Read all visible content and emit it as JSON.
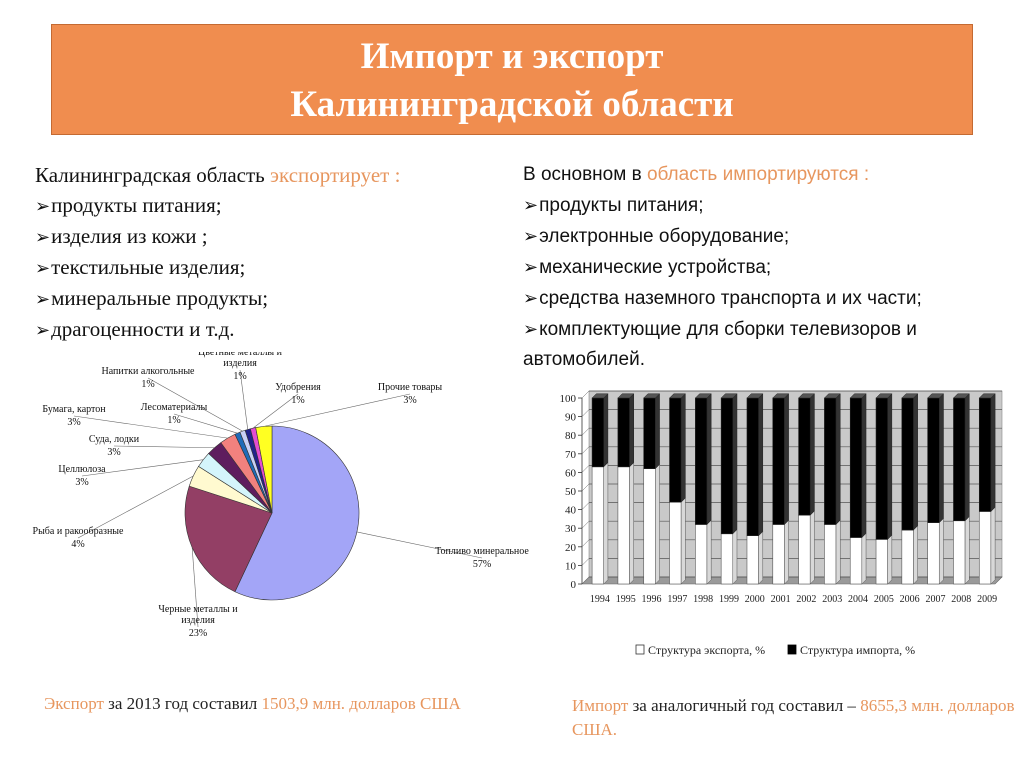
{
  "title": {
    "line1": "Импорт и экспорт",
    "line2": "Калининградской области"
  },
  "export_block": {
    "intro_plain": "Калининградская область ",
    "intro_accent": "экспортирует :",
    "items": [
      "продукты питания;",
      "изделия из кожи ;",
      "текстильные изделия;",
      "минеральные продукты;",
      "драгоценности и т.д."
    ]
  },
  "import_block": {
    "intro_plain": "В основном в ",
    "intro_accent": "область импортируются :",
    "items": [
      "продукты питания;",
      "электронные оборудование;",
      "механические устройства;",
      "средства наземного транспорта и их части;",
      "комплектующие для сборки телевизоров и"
    ],
    "continuation": "автомобилей."
  },
  "chart_data": [
    {
      "type": "pie",
      "title": "",
      "slices": [
        {
          "label": "Топливо минеральное",
          "value": 57,
          "color": "#a3a5f7"
        },
        {
          "label": "Черные металлы и изделия",
          "value": 23,
          "color": "#933f65"
        },
        {
          "label": "Рыба и ракообразные",
          "value": 4,
          "color": "#fffad0"
        },
        {
          "label": "Целлюлоза",
          "value": 3,
          "color": "#d4f5fb"
        },
        {
          "label": "Суда, лодки",
          "value": 3,
          "color": "#5e1d5e"
        },
        {
          "label": "Бумага, картон",
          "value": 3,
          "color": "#f2817e"
        },
        {
          "label": "Лесоматериалы",
          "value": 1,
          "color": "#1f6bb8"
        },
        {
          "label": "Напитки алкогольные",
          "value": 1,
          "color": "#c9d0f5"
        },
        {
          "label": "Цветные металлы и изделия",
          "value": 1,
          "color": "#22228b"
        },
        {
          "label": "Удобрения",
          "value": 1,
          "color": "#e34dd1"
        },
        {
          "label": "Прочие товары",
          "value": 3,
          "color": "#ffff22"
        }
      ],
      "label_texts": [
        {
          "name": "Топливо минеральное",
          "pct": "57%"
        },
        {
          "name": "Черные металлы и изделия",
          "pct": "23%"
        },
        {
          "name": "Рыба и ракообразные",
          "pct": "4%"
        },
        {
          "name": "Целлюлоза",
          "pct": "3%"
        },
        {
          "name": "Суда, лодки",
          "pct": "3%"
        },
        {
          "name": "Бумага, картон",
          "pct": "3%"
        },
        {
          "name": "Лесоматериалы",
          "pct": "1%"
        },
        {
          "name": "Напитки алкогольные",
          "pct": "1%"
        },
        {
          "name": "Цветные металлы и изделия",
          "pct": "1%"
        },
        {
          "name": "Удобрения",
          "pct": "1%"
        },
        {
          "name": "Прочие товары",
          "pct": "3%"
        }
      ]
    },
    {
      "type": "bar",
      "stacked": true,
      "percent": true,
      "categories": [
        "1994",
        "1995",
        "1996",
        "1997",
        "1998",
        "1999",
        "2000",
        "2001",
        "2002",
        "2003",
        "2004",
        "2005",
        "2006",
        "2007",
        "2008",
        "2009"
      ],
      "series": [
        {
          "name": "Структура экспорта, %",
          "color": "#ffffff",
          "values": [
            63,
            63,
            62,
            44,
            32,
            27,
            26,
            32,
            37,
            32,
            25,
            24,
            29,
            33,
            34,
            39
          ]
        },
        {
          "name": "Структура импорта, %",
          "color": "#000000",
          "values": [
            37,
            37,
            38,
            56,
            68,
            73,
            74,
            68,
            63,
            68,
            75,
            76,
            71,
            67,
            66,
            61
          ]
        }
      ],
      "ylim": [
        0,
        100
      ],
      "yticks": [
        0,
        10,
        20,
        30,
        40,
        50,
        60,
        70,
        80,
        90,
        100
      ],
      "xlabel": "",
      "ylabel": ""
    }
  ],
  "footer": {
    "left_accent": "Экспорт ",
    "left_dark": "за 2013 год составил ",
    "left_value": "1503,9 млн. долларов США",
    "right_accent": "Импорт ",
    "right_dark": "за аналогичный год составил – ",
    "right_value": "8655,3 млн. долларов США."
  }
}
